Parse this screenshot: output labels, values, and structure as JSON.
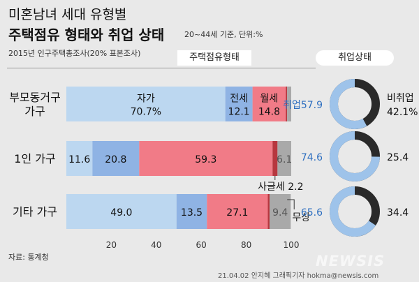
{
  "header": {
    "title_line1": "미혼남녀 세대 유형별",
    "title_line2": "주택점유 형태와 취업 상태",
    "note": "20~44세 기준, 단위:%",
    "survey": "2015년 인구주택총조사(20% 표본조사)",
    "tenure_header": "주택점유형태",
    "employment_header": "취업상태"
  },
  "footer": {
    "source": "자료: 통계청",
    "credit": "21.04.02 안지혜 그래픽기자 hokma@newsis.com",
    "watermark": "NEWSIS"
  },
  "colors": {
    "own": "#bcd7f0",
    "jeonse": "#8fb3e4",
    "monthly": "#f17b87",
    "sakeulse": "#b7373f",
    "free": "#a9a9a9",
    "employed": "#9ec3ea",
    "unemployed": "#2a2a2a",
    "label_blue": "#2e6fc0"
  },
  "chart_data": [
    {
      "type": "bar",
      "orientation": "horizontal",
      "stacked": true,
      "categories": [
        "부모동거구\n가구",
        "1인 가구",
        "기타 가구"
      ],
      "series": [
        {
          "name": "자가",
          "values": [
            70.7,
            11.6,
            49.0
          ],
          "color": "#bcd7f0"
        },
        {
          "name": "전세",
          "values": [
            12.1,
            20.8,
            13.5
          ],
          "color": "#8fb3e4"
        },
        {
          "name": "월세",
          "values": [
            14.8,
            59.3,
            27.1
          ],
          "color": "#f17b87"
        },
        {
          "name": "사글세",
          "values": [
            0.6,
            2.2,
            0.8
          ],
          "color": "#b7373f"
        },
        {
          "name": "무상",
          "values": [
            1.8,
            6.1,
            9.4
          ],
          "color": "#a9a9a9"
        }
      ],
      "data_labels": [
        [
          "자가\n70.7%",
          "전세\n12.1",
          "월세\n14.8",
          "",
          ""
        ],
        [
          "11.6",
          "20.8",
          "59.3",
          "",
          "6.1"
        ],
        [
          "49.0",
          "13.5",
          "27.1",
          "",
          "9.4"
        ]
      ],
      "annotations": [
        "사글세 2.2",
        "무상"
      ],
      "xlim": [
        0,
        100
      ],
      "xticks": [
        20,
        40,
        60,
        80,
        100
      ]
    },
    {
      "type": "pie",
      "donut": true,
      "categories": [
        "부모동거구\n가구",
        "1인 가구",
        "기타 가구"
      ],
      "series": [
        {
          "name": "취업",
          "values": [
            57.9,
            74.6,
            65.6
          ],
          "color": "#9ec3ea"
        },
        {
          "name": "비취업",
          "values": [
            42.1,
            25.4,
            34.4
          ],
          "color": "#2a2a2a"
        }
      ],
      "labels": [
        [
          "취업57.9",
          "비취업\n42.1%"
        ],
        [
          "74.6",
          "25.4"
        ],
        [
          "65.6",
          "34.4"
        ]
      ]
    }
  ]
}
